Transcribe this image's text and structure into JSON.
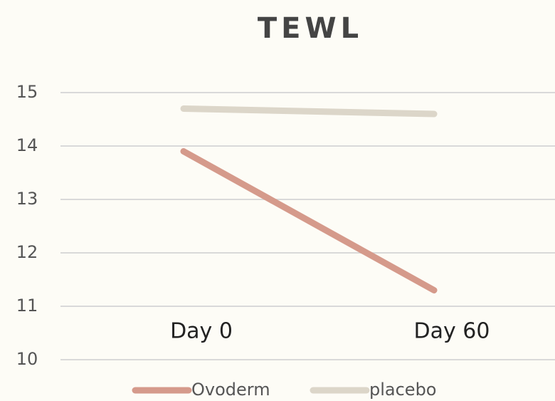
{
  "chart_data": {
    "type": "line",
    "title": "TEWL",
    "categories": [
      "Day 0",
      "Day 60"
    ],
    "series": [
      {
        "name": "Ovoderm",
        "color": "#d59a8b",
        "values": [
          13.9,
          11.3
        ]
      },
      {
        "name": "placebo",
        "color": "#dcd6c9",
        "values": [
          14.7,
          14.6
        ]
      }
    ],
    "ylim": [
      10,
      15
    ],
    "yticks": [
      10,
      11,
      12,
      13,
      14,
      15
    ],
    "grid": true,
    "legend": "bottom"
  }
}
